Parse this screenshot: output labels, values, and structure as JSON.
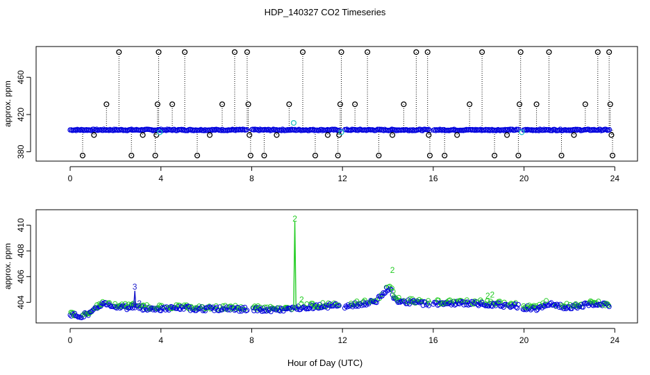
{
  "figure": {
    "title": "HDP_140327  CO2 Timeseries",
    "xlabel": "Hour of Day (UTC)"
  },
  "colors": {
    "axis": "#000000",
    "outlier": "#000000",
    "flag1": "#20c0c0",
    "flag2": "#22cc22",
    "flag3": "#1a1acc",
    "main_series": "#0000dd"
  },
  "chart_data": [
    {
      "type": "scatter",
      "title": "",
      "xlabel": "",
      "ylabel": "approx. ppm",
      "xlim": [
        -1.5,
        25
      ],
      "ylim": [
        370,
        493
      ],
      "xticks": [
        0,
        4,
        8,
        12,
        16,
        20,
        24
      ],
      "yticks": [
        380,
        420,
        460
      ],
      "ytick_labels": [
        "380",
        "420",
        "460"
      ],
      "series": [
        {
          "name": "baseline (blue markers)",
          "x_start": 0.0,
          "x_end": 23.8,
          "gaps": [
            [
              7.8,
              8.0
            ],
            [
              11.9,
              12.1
            ],
            [
              15.85,
              16.0
            ],
            [
              19.8,
              19.95
            ]
          ],
          "value": 403.5
        },
        {
          "name": "outliers (black, flag 0)",
          "points": [
            [
              0.55,
              376
            ],
            [
              1.05,
              398
            ],
            [
              1.6,
              431
            ],
            [
              2.15,
              487
            ],
            [
              2.7,
              376
            ],
            [
              3.2,
              398
            ],
            [
              3.75,
              376
            ],
            [
              3.8,
              398
            ],
            [
              3.85,
              431
            ],
            [
              3.9,
              487
            ],
            [
              4.5,
              431
            ],
            [
              5.05,
              487
            ],
            [
              5.6,
              376
            ],
            [
              6.15,
              398
            ],
            [
              6.7,
              431
            ],
            [
              7.25,
              487
            ],
            [
              7.8,
              487
            ],
            [
              7.85,
              431
            ],
            [
              7.9,
              398
            ],
            [
              7.95,
              376
            ],
            [
              8.55,
              376
            ],
            [
              9.1,
              398
            ],
            [
              9.65,
              431
            ],
            [
              10.25,
              487
            ],
            [
              10.8,
              376
            ],
            [
              11.35,
              398
            ],
            [
              11.8,
              376
            ],
            [
              11.85,
              398
            ],
            [
              11.9,
              431
            ],
            [
              11.95,
              487
            ],
            [
              12.55,
              431
            ],
            [
              13.1,
              487
            ],
            [
              13.6,
              376
            ],
            [
              14.2,
              398
            ],
            [
              14.7,
              431
            ],
            [
              15.25,
              487
            ],
            [
              15.75,
              487
            ],
            [
              15.8,
              398
            ],
            [
              15.85,
              376
            ],
            [
              16.5,
              376
            ],
            [
              17.05,
              398
            ],
            [
              17.6,
              431
            ],
            [
              18.15,
              487
            ],
            [
              18.7,
              376
            ],
            [
              19.25,
              398
            ],
            [
              19.75,
              376
            ],
            [
              19.8,
              431
            ],
            [
              19.85,
              487
            ],
            [
              20.55,
              431
            ],
            [
              21.1,
              487
            ],
            [
              21.65,
              376
            ],
            [
              22.2,
              398
            ],
            [
              22.7,
              431
            ],
            [
              23.25,
              487
            ],
            [
              23.75,
              487
            ],
            [
              23.8,
              431
            ],
            [
              23.85,
              398
            ],
            [
              23.9,
              376
            ]
          ]
        },
        {
          "name": "flag 1 (cyan)",
          "points": [
            [
              3.95,
              401
            ],
            [
              9.85,
              411
            ],
            [
              11.95,
              401
            ],
            [
              19.9,
              401
            ]
          ]
        }
      ]
    },
    {
      "type": "scatter",
      "title": "",
      "xlabel": "Hour of Day (UTC)",
      "ylabel": "approx. ppm",
      "xlim": [
        -1.5,
        25
      ],
      "ylim": [
        402.4,
        411.2
      ],
      "xticks": [
        0,
        4,
        8,
        12,
        16,
        20,
        24
      ],
      "yticks": [
        404,
        406,
        408,
        410
      ],
      "ytick_labels": [
        "404",
        "406",
        "408",
        "410"
      ],
      "series": [
        {
          "name": "flag 3 (blue)",
          "marker": "3",
          "annotations": [
            [
              2.85,
              405.2
            ],
            [
              3.05,
              403.9
            ]
          ]
        },
        {
          "name": "flag 2 (green)",
          "marker": "2",
          "annotations": [
            [
              9.9,
              410.5
            ],
            [
              10.2,
              404.2
            ],
            [
              14.2,
              406.5
            ],
            [
              18.4,
              404.5
            ],
            [
              18.6,
              404.6
            ]
          ]
        },
        {
          "name": "hourly profile",
          "x": [
            0,
            0.5,
            1.0,
            1.3,
            1.6,
            2.0,
            2.5,
            2.8,
            3.2,
            3.7,
            4.0,
            5,
            6,
            7,
            7.8,
            8.0,
            9,
            9.8,
            10.1,
            11,
            11.9,
            12.1,
            13,
            13.5,
            13.9,
            14.1,
            14.3,
            15,
            15.8,
            16.0,
            17,
            18,
            19,
            19.8,
            20.0,
            20.5,
            21,
            21.5,
            22,
            23,
            23.8
          ],
          "y": [
            403.0,
            402.95,
            403.25,
            403.8,
            403.9,
            403.7,
            403.6,
            403.7,
            403.55,
            403.5,
            403.5,
            403.55,
            403.5,
            403.5,
            403.45,
            403.45,
            403.4,
            403.5,
            403.6,
            403.7,
            403.75,
            403.7,
            403.9,
            404.1,
            404.9,
            405.2,
            404.2,
            404.0,
            403.9,
            403.9,
            403.95,
            403.9,
            403.8,
            403.7,
            403.6,
            403.5,
            403.9,
            403.7,
            403.65,
            403.85,
            403.75
          ],
          "gaps": [
            [
              7.8,
              8.0
            ],
            [
              11.9,
              12.1
            ],
            [
              15.85,
              16.0
            ],
            [
              19.8,
              19.95
            ]
          ]
        }
      ]
    }
  ]
}
